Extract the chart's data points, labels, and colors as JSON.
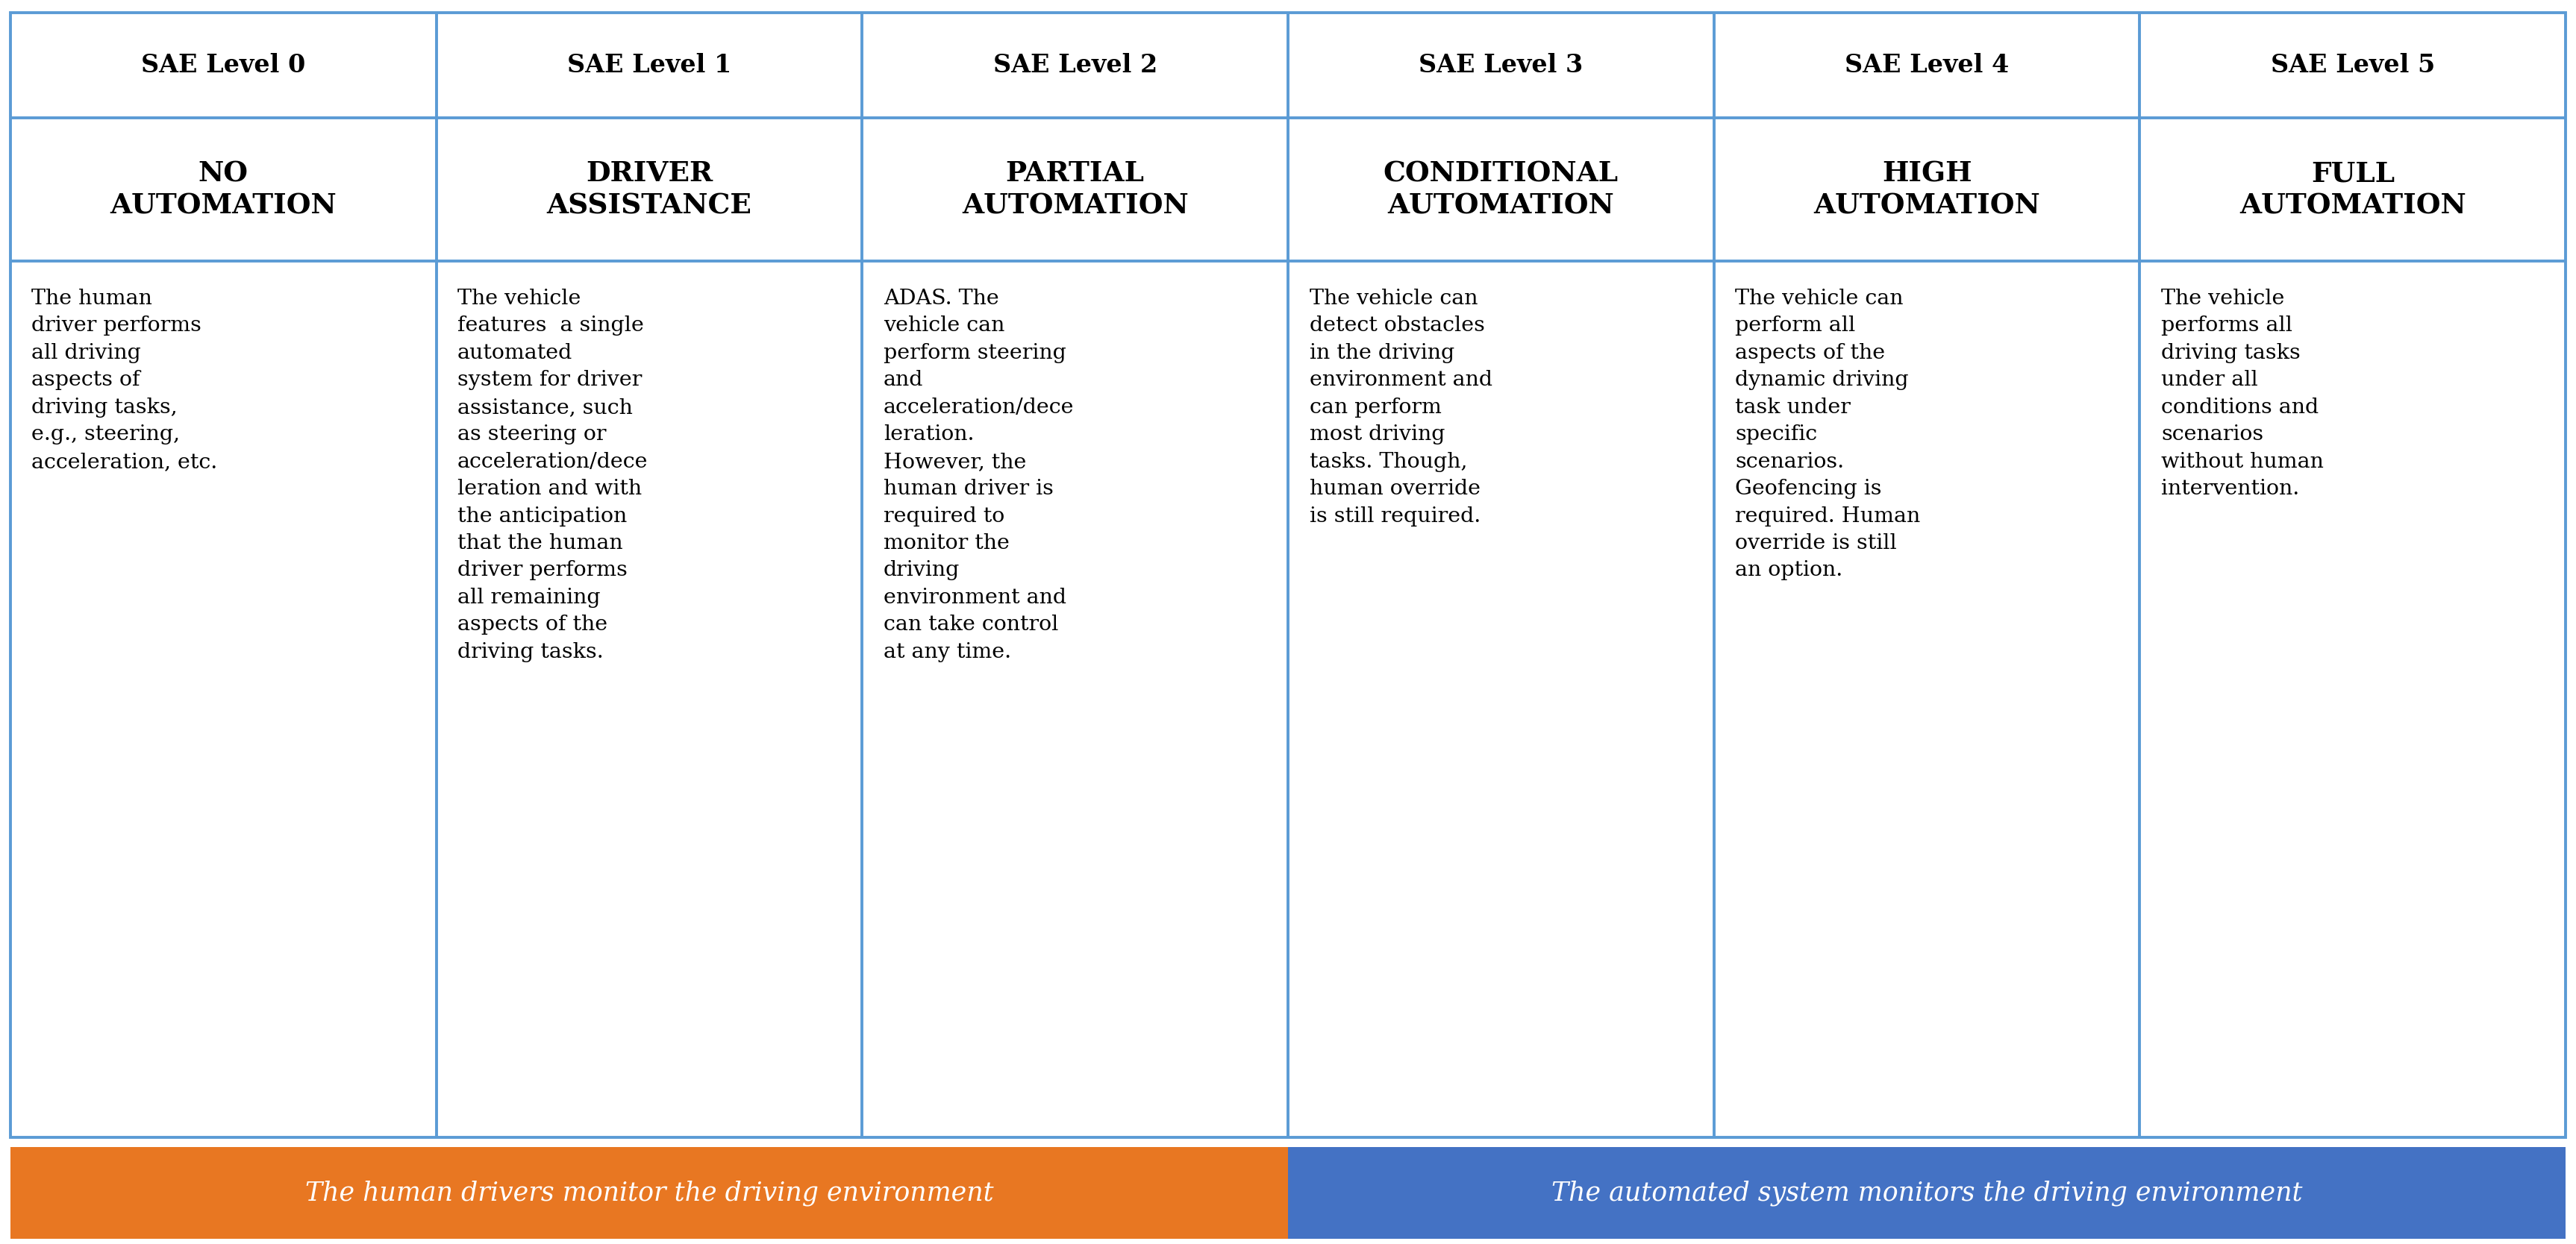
{
  "levels": [
    "SAE Level 0",
    "SAE Level 1",
    "SAE Level 2",
    "SAE Level 3",
    "SAE Level 4",
    "SAE Level 5"
  ],
  "subtitles": [
    "NO\nAUTOMATION",
    "DRIVER\nASSISTANCE",
    "PARTIAL\nAUTOMATION",
    "CONDITIONAL\nAUTOMATION",
    "HIGH\nAUTOMATION",
    "FULL\nAUTOMATION"
  ],
  "descriptions": [
    "The human\ndriver performs\nall driving\naspects of\ndriving tasks,\ne.g., steering,\nacceleration, etc.",
    "The vehicle\nfeatures  a single\nautomated\nsystem for driver\nassistance, such\nas steering or\nacceleration/dece\nleration and with\nthe anticipation\nthat the human\ndriver performs\nall remaining\naspects of the\ndriving tasks.",
    "ADAS. The\nvehicle can\nperform steering\nand\nacceleration/dece\nleration.\nHowever, the\nhuman driver is\nrequired to\nmonitor the\ndriving\nenvironment and\ncan take control\nat any time.",
    "The vehicle can\ndetect obstacles\nin the driving\nenvironment and\ncan perform\nmost driving\ntasks. Though,\nhuman override\nis still required.",
    "The vehicle can\nperform all\naspects of the\ndynamic driving\ntask under\nspecific\nscenarios.\nGeofencing is\nrequired. Human\noverride is still\nan option.",
    "The vehicle\nperforms all\ndriving tasks\nunder all\nconditions and\nscenarios\nwithout human\nintervention."
  ],
  "border_color": "#5B9BD5",
  "bg_color": "#FFFFFF",
  "text_color": "#000000",
  "footer_left_text": "The human drivers monitor the driving environment",
  "footer_right_text": "The automated system monitors the driving environment",
  "footer_left_color": "#E87722",
  "footer_right_color": "#4472C4",
  "footer_text_color": "#FFFFFF",
  "n_cols": 6,
  "header_fontsize": 24,
  "subtitle_fontsize": 27,
  "desc_fontsize": 20.5,
  "footer_fontsize": 25
}
